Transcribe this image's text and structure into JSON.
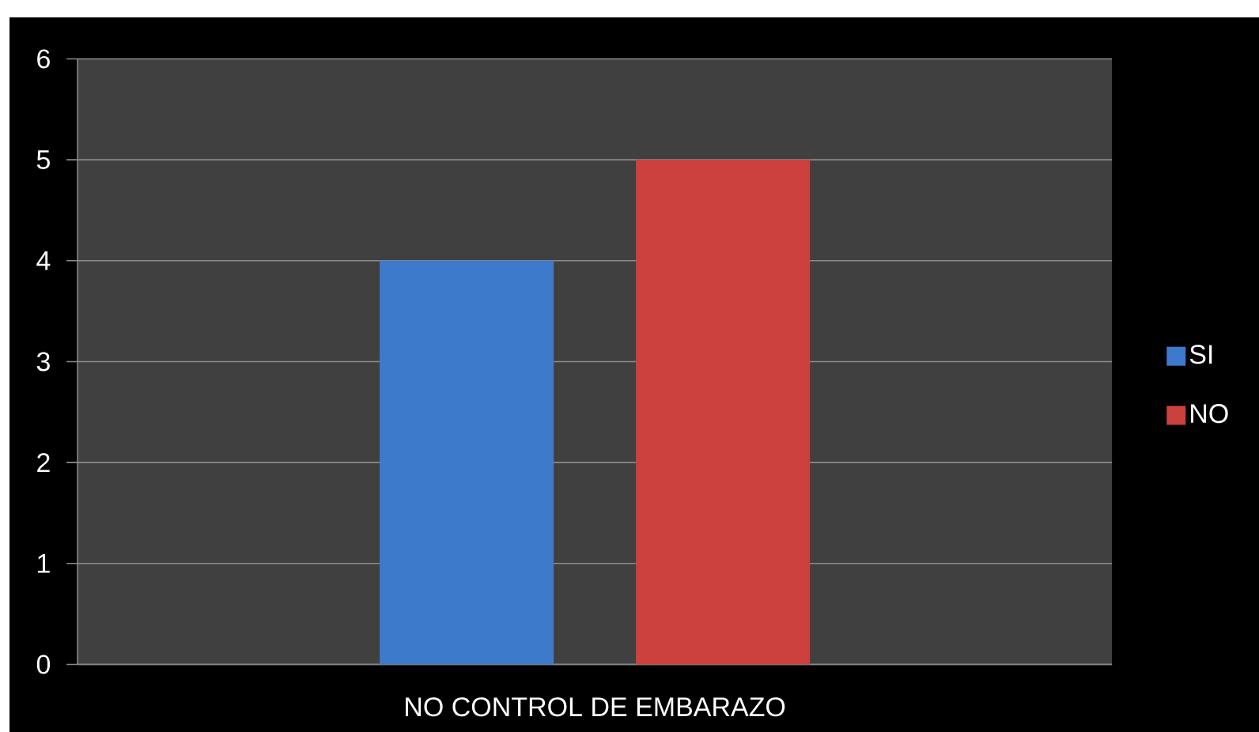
{
  "chart_data": {
    "type": "bar",
    "categories": [
      "NO  CONTROL DE EMBARAZO"
    ],
    "series": [
      {
        "name": "SI",
        "color": "#3e7acc",
        "values": [
          4
        ]
      },
      {
        "name": "NO",
        "color": "#cc403d",
        "values": [
          5
        ]
      }
    ],
    "ylim": [
      0,
      6
    ],
    "yticks": [
      0,
      1,
      2,
      3,
      4,
      5,
      6
    ],
    "grid": "y",
    "legend": "right"
  }
}
